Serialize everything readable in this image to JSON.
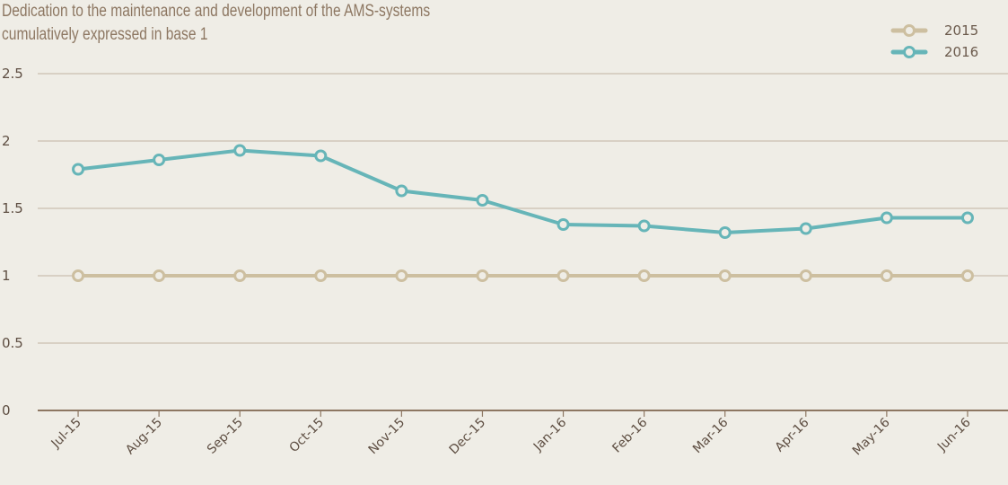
{
  "chart_data": {
    "type": "line",
    "title": "Dedication to the maintenance and development of the AMS-systems",
    "subtitle": "cumulatively expressed in base 1",
    "xlabel": "",
    "ylabel": "",
    "categories": [
      "Jul-15",
      "Aug-15",
      "Sep-15",
      "Oct-15",
      "Nov-15",
      "Dec-15",
      "Jan-16",
      "Feb-16",
      "Mar-16",
      "Apr-16",
      "May-16",
      "Jun-16"
    ],
    "yticks": [
      "0",
      "0.5",
      "1",
      "1.5",
      "2",
      "2.5"
    ],
    "ylim": [
      0,
      2.5
    ],
    "grid": true,
    "legend_position": "top-right",
    "series": [
      {
        "name": "2015",
        "color": "#cdbfa0",
        "values": [
          1,
          1,
          1,
          1,
          1,
          1,
          1,
          1,
          1,
          1,
          1,
          1
        ]
      },
      {
        "name": "2016",
        "color": "#66b5b8",
        "values": [
          1.79,
          1.86,
          1.93,
          1.89,
          1.63,
          1.56,
          1.38,
          1.37,
          1.32,
          1.35,
          1.43,
          1.43
        ]
      }
    ]
  }
}
